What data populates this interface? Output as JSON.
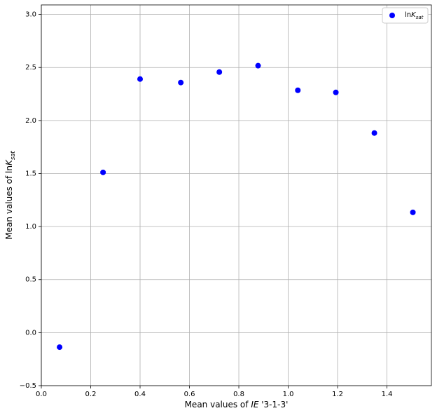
{
  "chart_data": {
    "type": "scatter",
    "x_label": [
      "Mean values of ",
      "IE",
      " '3-1-3'"
    ],
    "y_label": [
      "Mean values of ln",
      "K",
      "sat"
    ],
    "x": [
      0.074,
      0.25,
      0.4,
      0.565,
      0.721,
      0.878,
      1.039,
      1.193,
      1.349,
      1.505
    ],
    "series": [
      {
        "name": [
          "ln",
          "K",
          "sat"
        ],
        "color": "#0000ff",
        "values": [
          -0.137,
          1.511,
          2.391,
          2.358,
          2.457,
          2.517,
          2.285,
          2.265,
          1.882,
          1.134
        ]
      }
    ],
    "xlim": [
      0,
      1.58
    ],
    "ylim": [
      -0.5,
      3.09
    ],
    "xticks": [
      {
        "value": 0,
        "label": "0.0"
      },
      {
        "value": 0.2,
        "label": "0.2"
      },
      {
        "value": 0.4,
        "label": "0.4"
      },
      {
        "value": 0.6,
        "label": "0.6"
      },
      {
        "value": 0.8,
        "label": "0.8"
      },
      {
        "value": 1,
        "label": "1.0"
      },
      {
        "value": 1.2,
        "label": "1.2"
      },
      {
        "value": 1.4,
        "label": "1.4"
      }
    ],
    "yticks": [
      {
        "value": -0.5,
        "label": "−0.5"
      },
      {
        "value": 0,
        "label": "0.0"
      },
      {
        "value": 0.5,
        "label": "0.5"
      },
      {
        "value": 1,
        "label": "1.0"
      },
      {
        "value": 1.5,
        "label": "1.5"
      },
      {
        "value": 2,
        "label": "2.0"
      },
      {
        "value": 2.5,
        "label": "2.5"
      },
      {
        "value": 3,
        "label": "3.0"
      }
    ],
    "grid": true,
    "legend": "upper right"
  }
}
